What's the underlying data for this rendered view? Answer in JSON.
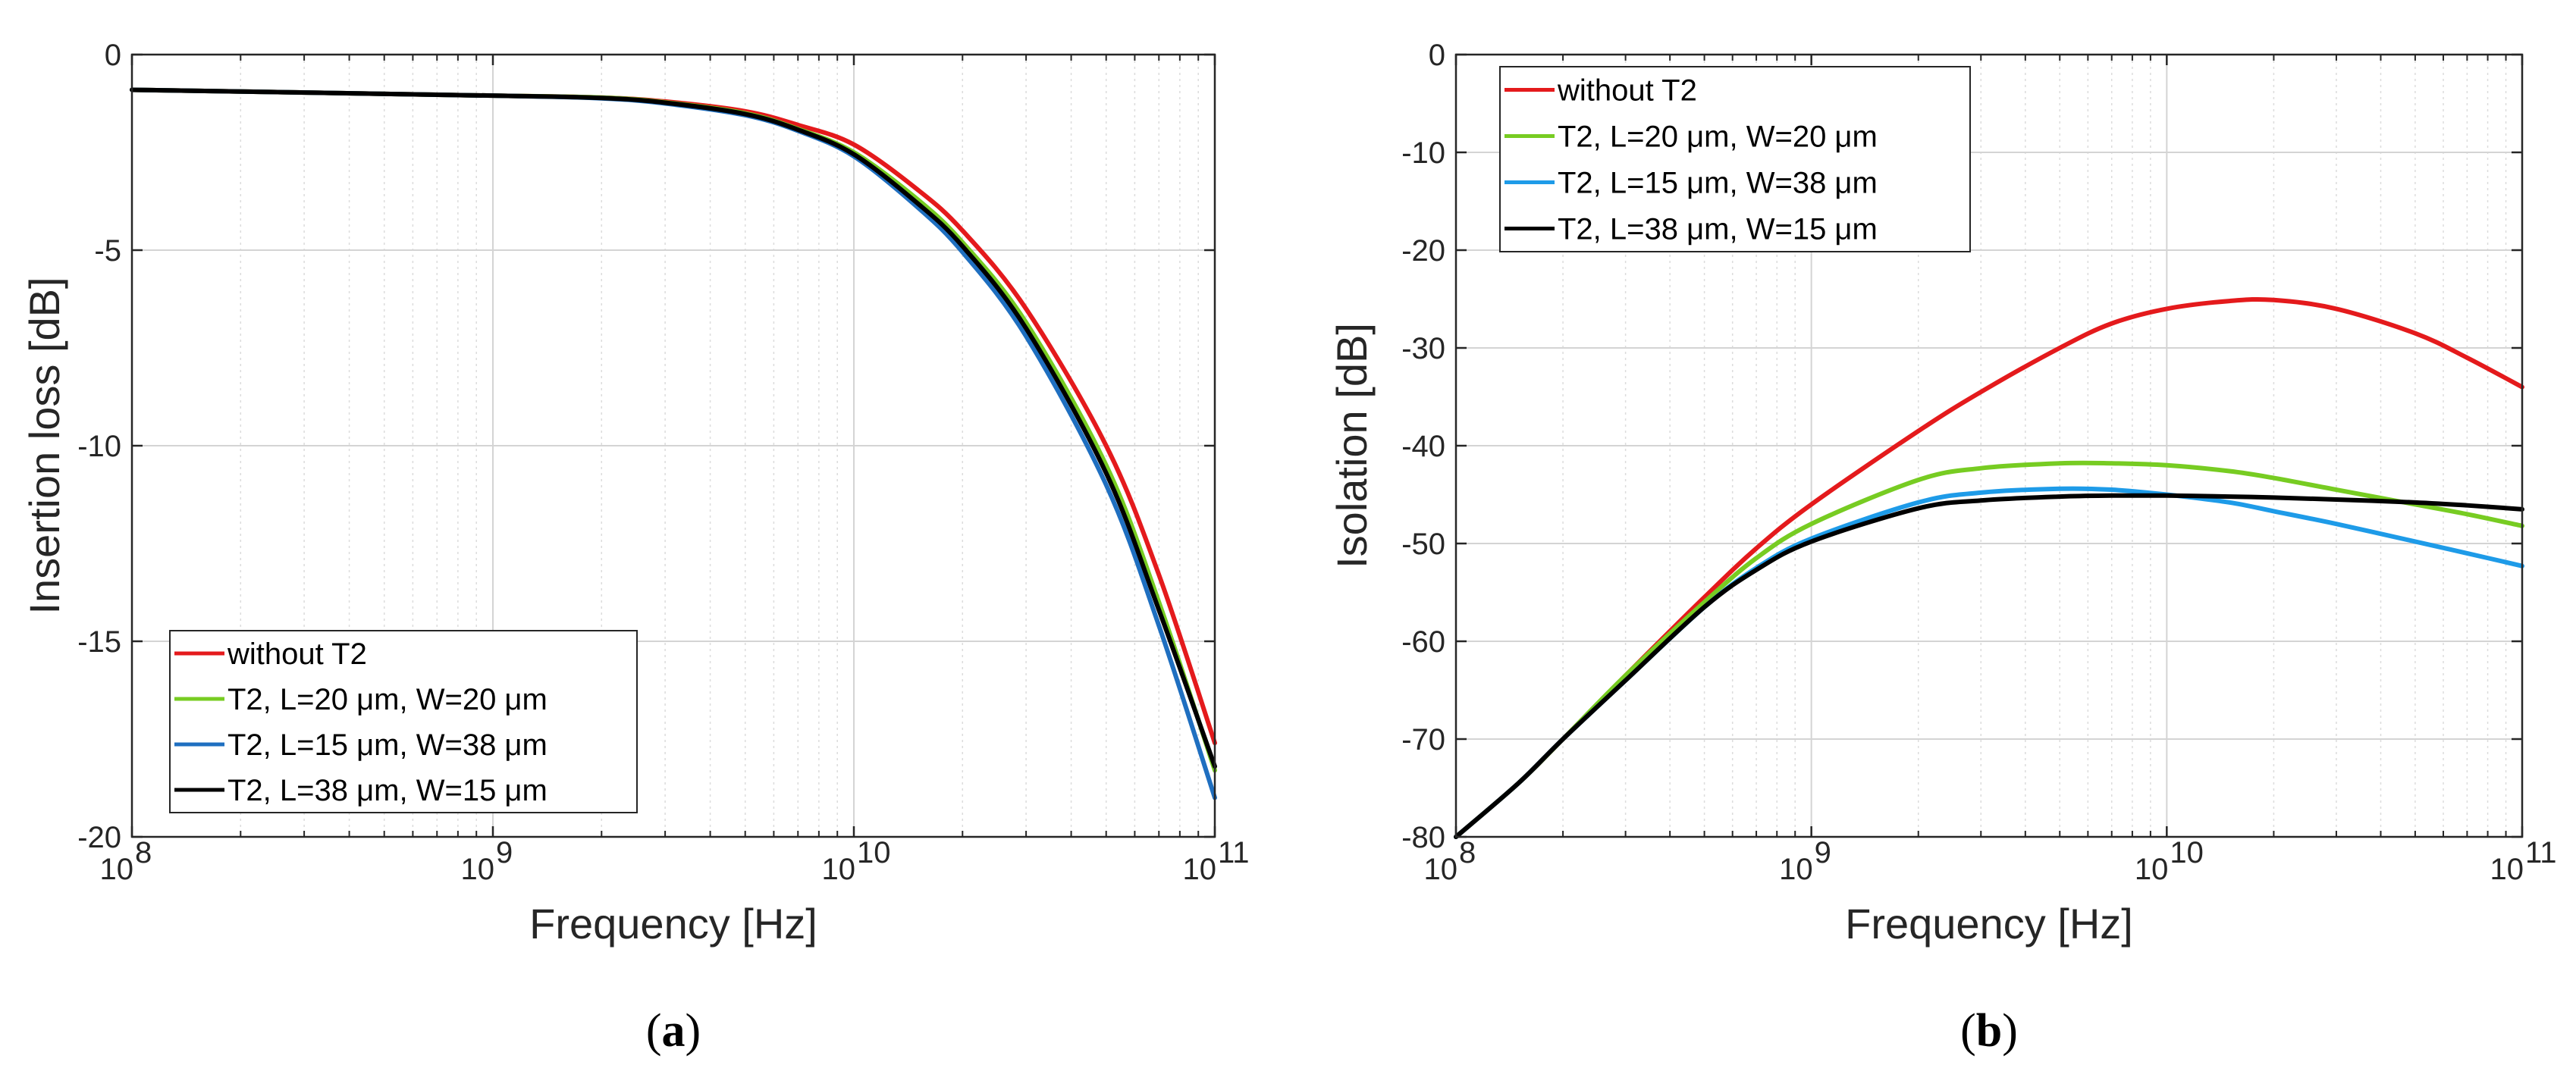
{
  "colors": {
    "red": "#e41a1c",
    "green": "#77cc22",
    "blue_a": "#1f6fc0",
    "blue_b": "#1e9be8",
    "black": "#000000"
  },
  "chart_data": [
    {
      "type": "line",
      "panel_label": "(a)",
      "panel_paren_open": "(",
      "panel_letter": "a",
      "panel_paren_close": ")",
      "title": "",
      "xlabel": "Frequency [Hz]",
      "ylabel": "Insertion loss [dB]",
      "xscale": "log",
      "xlim": [
        100000000,
        100000000000
      ],
      "ylim": [
        -20,
        0
      ],
      "grid": true,
      "legend_position": "bottom-left",
      "xticks": [
        {
          "base": "10",
          "exp": "8",
          "value": 100000000
        },
        {
          "base": "10",
          "exp": "9",
          "value": 1000000000
        },
        {
          "base": "10",
          "exp": "10",
          "value": 10000000000
        },
        {
          "base": "10",
          "exp": "11",
          "value": 100000000000
        }
      ],
      "yticks": [
        "0",
        "-5",
        "-10",
        "-15",
        "-20"
      ],
      "yticks_values": [
        0,
        -5,
        -10,
        -15,
        -20
      ],
      "x": [
        100000000,
        1000000000,
        2000000000,
        3000000000,
        5000000000,
        7000000000,
        10000000000,
        15000000000,
        20000000000,
        30000000000,
        50000000000,
        70000000000,
        100000000000
      ],
      "series": [
        {
          "name": "without T2",
          "color": "#e41a1c",
          "values": [
            -0.9,
            -1.05,
            -1.1,
            -1.2,
            -1.45,
            -1.8,
            -2.3,
            -3.45,
            -4.5,
            -6.5,
            -10.0,
            -13.3,
            -17.6
          ]
        },
        {
          "name": "T2, L=20 μm, W=20 μm",
          "color": "#77cc22",
          "values": [
            -0.9,
            -1.05,
            -1.1,
            -1.22,
            -1.5,
            -1.9,
            -2.5,
            -3.7,
            -4.8,
            -6.85,
            -10.5,
            -14.0,
            -18.3
          ]
        },
        {
          "name": "T2, L=15 μm, W=38 μm",
          "color": "#1f6fc0",
          "values": [
            -0.9,
            -1.05,
            -1.12,
            -1.25,
            -1.55,
            -1.95,
            -2.6,
            -3.9,
            -5.05,
            -7.2,
            -11.0,
            -14.6,
            -19.0
          ]
        },
        {
          "name": "T2, L=38 μm, W=15 μm",
          "color": "#000000",
          "values": [
            -0.9,
            -1.05,
            -1.11,
            -1.23,
            -1.52,
            -1.92,
            -2.55,
            -3.8,
            -4.9,
            -7.0,
            -10.7,
            -14.2,
            -18.2
          ]
        }
      ]
    },
    {
      "type": "line",
      "panel_label": "(b)",
      "panel_paren_open": "(",
      "panel_letter": "b",
      "panel_paren_close": ")",
      "title": "",
      "xlabel": "Frequency [Hz]",
      "ylabel": "Isolation [dB]",
      "xscale": "log",
      "xlim": [
        100000000,
        100000000000
      ],
      "ylim": [
        -80,
        0
      ],
      "grid": true,
      "legend_position": "top-left",
      "xticks": [
        {
          "base": "10",
          "exp": "8",
          "value": 100000000
        },
        {
          "base": "10",
          "exp": "9",
          "value": 1000000000
        },
        {
          "base": "10",
          "exp": "10",
          "value": 10000000000
        },
        {
          "base": "10",
          "exp": "11",
          "value": 100000000000
        }
      ],
      "yticks": [
        "0",
        "-10",
        "-20",
        "-30",
        "-40",
        "-50",
        "-60",
        "-70",
        "-80"
      ],
      "yticks_values": [
        0,
        -10,
        -20,
        -30,
        -40,
        -50,
        -60,
        -70,
        -80
      ],
      "x": [
        100000000,
        150000000,
        200000000,
        300000000,
        500000000,
        700000000,
        1000000000,
        2000000000,
        3000000000,
        5000000000,
        7000000000,
        10000000000,
        15000000000,
        20000000000,
        30000000000,
        50000000000,
        70000000000,
        100000000000
      ],
      "series": [
        {
          "name": "without T2",
          "color": "#e41a1c",
          "values": [
            -80,
            -74.5,
            -70,
            -63.5,
            -55.5,
            -50.5,
            -46,
            -38.5,
            -34.5,
            -30,
            -27.5,
            -26,
            -25.2,
            -25.1,
            -26,
            -28.5,
            -31,
            -34
          ]
        },
        {
          "name": "T2, L=20 μm, W=20 μm",
          "color": "#77cc22",
          "values": [
            -80,
            -74.5,
            -70,
            -63.5,
            -56,
            -51.5,
            -48,
            -43.5,
            -42.3,
            -41.8,
            -41.8,
            -42,
            -42.6,
            -43.3,
            -44.5,
            -46,
            -47,
            -48.2
          ]
        },
        {
          "name": "T2, L=15 μm, W=38 μm",
          "color": "#1e9be8",
          "values": [
            -80,
            -74.5,
            -70,
            -64,
            -56.5,
            -52.5,
            -49.5,
            -45.8,
            -44.8,
            -44.4,
            -44.5,
            -45,
            -45.8,
            -46.7,
            -48,
            -49.8,
            -51,
            -52.3
          ]
        },
        {
          "name": "T2, L=38 μm, W=15 μm",
          "color": "#000000",
          "values": [
            -80,
            -74.5,
            -70,
            -64,
            -56.5,
            -52.7,
            -49.8,
            -46.4,
            -45.6,
            -45.2,
            -45.1,
            -45.1,
            -45.2,
            -45.3,
            -45.5,
            -45.8,
            -46.1,
            -46.5
          ]
        }
      ]
    }
  ]
}
